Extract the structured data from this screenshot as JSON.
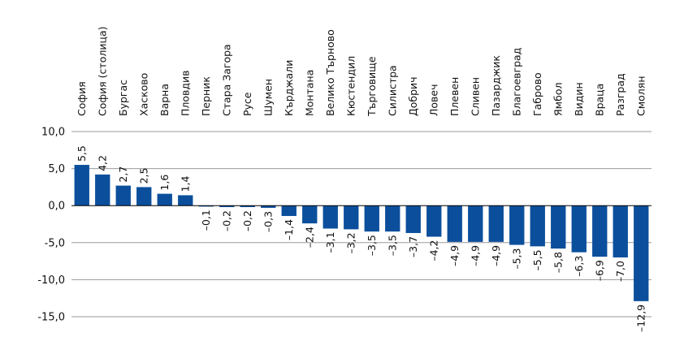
{
  "chart_data": {
    "type": "bar",
    "title": "",
    "xlabel": "",
    "ylabel": "",
    "ylim": [
      -15,
      10
    ],
    "yticks": [
      10,
      5,
      0,
      -5,
      -10,
      -15
    ],
    "ytick_labels": [
      "10,0",
      "5,0",
      "0,0",
      "-5,0",
      "-10,0",
      "-15,0"
    ],
    "grid": true,
    "bar_color": "#0b4f9c",
    "categories": [
      "София",
      "София (столица)",
      "Бургас",
      "Хасково",
      "Варна",
      "Пловдив",
      "Перник",
      "Стара Загора",
      "Русе",
      "Шумен",
      "Кърджали",
      "Монтана",
      "Велико Търново",
      "Кюстендил",
      "Търговище",
      "Силистра",
      "Добрич",
      "Ловеч",
      "Плевен",
      "Сливен",
      "Пазарджик",
      "Благоевград",
      "Габрово",
      "Ямбол",
      "Видин",
      "Враца",
      "Разград",
      "Смолян"
    ],
    "values": [
      5.5,
      4.2,
      2.7,
      2.5,
      1.6,
      1.4,
      -0.1,
      -0.2,
      -0.2,
      -0.3,
      -1.4,
      -2.4,
      -3.1,
      -3.2,
      -3.5,
      -3.5,
      -3.7,
      -4.2,
      -4.9,
      -4.9,
      -4.9,
      -5.3,
      -5.5,
      -5.8,
      -6.3,
      -6.9,
      -7.0,
      -12.9
    ],
    "value_labels": [
      "5,5",
      "4,2",
      "2,7",
      "2,5",
      "1,6",
      "1,4",
      "–0,1",
      "–0,2",
      "–0,2",
      "–0,3",
      "–1,4",
      "–2,4",
      "–3,1",
      "–3,2",
      "–3,5",
      "–3,5",
      "–3,7",
      "–4,2",
      "–4,9",
      "–4,9",
      "–4,9",
      "–5,3",
      "–5,5",
      "–5,8",
      "–6,3",
      "–6,9",
      "–7,0",
      "–12,9"
    ]
  }
}
